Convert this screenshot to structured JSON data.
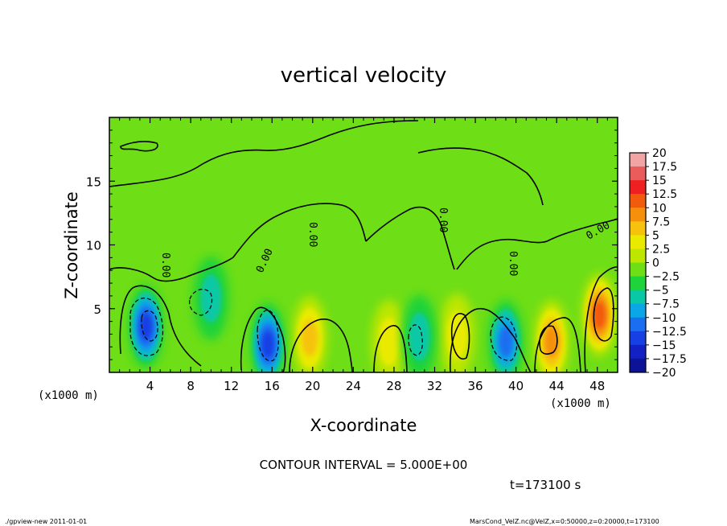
{
  "chart_data": {
    "type": "heatmap",
    "title": "vertical velocity",
    "xlabel": "X-coordinate",
    "ylabel": "Z-coordinate",
    "x_unit": "(x1000 m)",
    "x_unit_right": "(x1000 m)",
    "xlim": [
      0,
      50
    ],
    "ylim": [
      0,
      20
    ],
    "xticks": [
      "4",
      "8",
      "12",
      "16",
      "20",
      "24",
      "28",
      "32",
      "36",
      "40",
      "44",
      "48"
    ],
    "yticks": [
      "5",
      "10",
      "15"
    ],
    "contour_interval": "CONTOUR INTERVAL = 5.000E+00",
    "contour_labels": [
      "0.00",
      "0.00",
      "0.00",
      "0.00",
      "0.00",
      "0.00"
    ],
    "time_label": "t=173100 s",
    "colorbar": {
      "labels": [
        "20",
        "17.5",
        "15",
        "12.5",
        "10",
        "7.5",
        "5",
        "2.5",
        "0",
        "-2.5",
        "-5",
        "-7.5",
        "-10",
        "-12.5",
        "-15",
        "-17.5",
        "-20"
      ],
      "colors": [
        "#f2a3a3",
        "#ea5c5c",
        "#ee2020",
        "#f25a0e",
        "#f5900c",
        "#f6c20e",
        "#eaea00",
        "#bde600",
        "#6ede16",
        "#1fd33a",
        "#08c8a6",
        "#0aa6e6",
        "#1a6ef0",
        "#1740e4",
        "#1220c4",
        "#0c1396",
        "#6b19b8"
      ]
    },
    "features": [
      {
        "kind": "updraft",
        "x": 48.2,
        "z": 4.5,
        "value": 12
      },
      {
        "kind": "updraft",
        "x": 43.5,
        "z": 2.4,
        "value": 10
      },
      {
        "kind": "updraft",
        "x": 19.7,
        "z": 2.7,
        "value": 7
      },
      {
        "kind": "updraft",
        "x": 27.5,
        "z": 2.4,
        "value": 6
      },
      {
        "kind": "updraft",
        "x": 34.2,
        "z": 2.9,
        "value": 6
      },
      {
        "kind": "downdraft",
        "x": 3.6,
        "z": 3.6,
        "value": -13
      },
      {
        "kind": "downdraft",
        "x": 15.6,
        "z": 2.2,
        "value": -12
      },
      {
        "kind": "downdraft",
        "x": 39.0,
        "z": 2.4,
        "value": -10
      },
      {
        "kind": "downdraft",
        "x": 10.0,
        "z": 5.8,
        "value": -6
      },
      {
        "kind": "downdraft",
        "x": 30.5,
        "z": 2.8,
        "value": -5
      }
    ]
  },
  "footer": {
    "left": "./gpview-new   2011-01-01",
    "right": "MarsCond_VelZ.nc@VelZ,x=0:50000,z=0:20000,t=173100"
  }
}
